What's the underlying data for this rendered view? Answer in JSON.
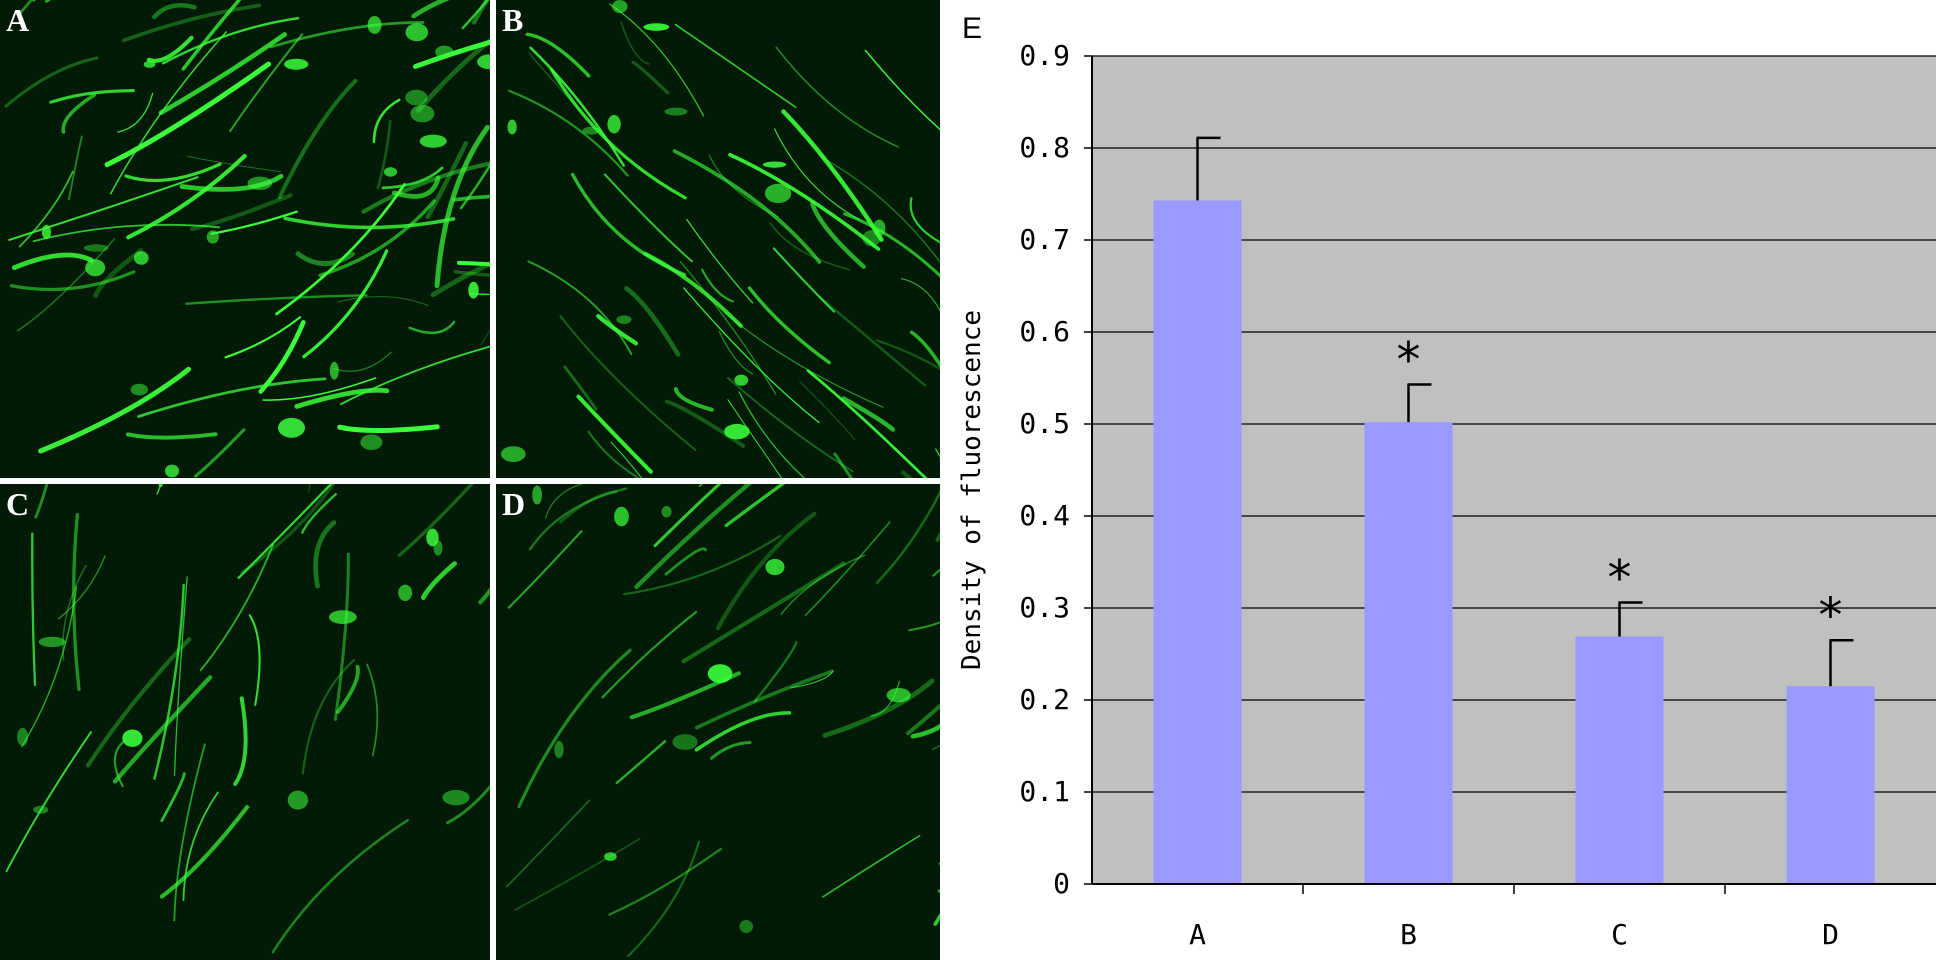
{
  "figure": {
    "panels": [
      {
        "id": "A",
        "label": "A"
      },
      {
        "id": "B",
        "label": "B"
      },
      {
        "id": "C",
        "label": "C"
      },
      {
        "id": "D",
        "label": "D"
      }
    ],
    "chart_panel_label": "E"
  },
  "colors": {
    "plot_background": "#c0c0c0",
    "bar_fill": "#9999ff",
    "fluorescence": "#3cff3c",
    "micrograph_background": "#021a06"
  },
  "chart_data": {
    "type": "bar",
    "categories": [
      "A",
      "B",
      "C",
      "D"
    ],
    "values": [
      0.743,
      0.502,
      0.269,
      0.215
    ],
    "error_upper": [
      0.811,
      0.543,
      0.306,
      0.265
    ],
    "significance": [
      "",
      "*",
      "*",
      "*"
    ],
    "ylabel": "Density of fluorescence",
    "xlabel": "",
    "ylim": [
      0,
      0.9
    ],
    "yticks": [
      "0",
      "0.1",
      "0.2",
      "0.3",
      "0.4",
      "0.5",
      "0.6",
      "0.7",
      "0.8",
      "0.9"
    ],
    "grid": true,
    "legend": "none"
  }
}
